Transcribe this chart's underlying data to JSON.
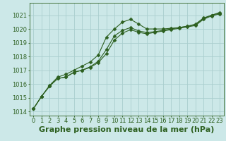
{
  "title": "Graphe pression niveau de la mer (hPa)",
  "bg_color": "#cce8e8",
  "grid_color": "#aacece",
  "line_color": "#2d6020",
  "x_ticks": [
    0,
    1,
    2,
    3,
    4,
    5,
    6,
    7,
    8,
    9,
    10,
    11,
    12,
    13,
    14,
    15,
    16,
    17,
    18,
    19,
    20,
    21,
    22,
    23
  ],
  "ylim": [
    1013.7,
    1021.9
  ],
  "yticks": [
    1014,
    1015,
    1016,
    1017,
    1018,
    1019,
    1020,
    1021
  ],
  "series": [
    [
      1014.2,
      1015.1,
      1015.9,
      1016.5,
      1016.7,
      1017.0,
      1017.3,
      1017.6,
      1018.1,
      1019.4,
      1020.0,
      1020.5,
      1020.7,
      1020.35,
      1020.0,
      1020.0,
      1020.0,
      1020.05,
      1020.1,
      1020.2,
      1020.35,
      1020.8,
      1021.0,
      1021.2
    ],
    [
      1014.2,
      1015.1,
      1015.85,
      1016.4,
      1016.5,
      1016.85,
      1017.0,
      1017.25,
      1017.65,
      1018.5,
      1019.5,
      1019.9,
      1020.1,
      1019.85,
      1019.75,
      1019.8,
      1019.9,
      1020.0,
      1020.1,
      1020.2,
      1020.3,
      1020.75,
      1021.0,
      1021.15
    ],
    [
      1014.2,
      1015.1,
      1015.85,
      1016.4,
      1016.5,
      1016.85,
      1017.0,
      1017.2,
      1017.55,
      1018.2,
      1019.2,
      1019.7,
      1019.95,
      1019.75,
      1019.65,
      1019.75,
      1019.85,
      1019.95,
      1020.05,
      1020.15,
      1020.25,
      1020.7,
      1020.95,
      1021.1
    ]
  ],
  "marker": "D",
  "markersize": 2.5,
  "linewidth": 0.8,
  "title_fontsize": 8,
  "tick_fontsize": 6
}
